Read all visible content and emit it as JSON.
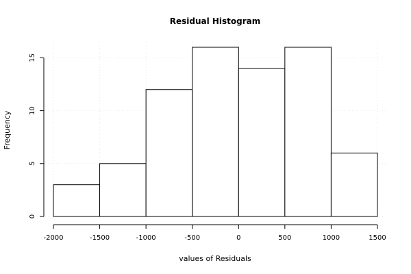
{
  "chart_data": {
    "type": "bar",
    "title": "Residual Histogram",
    "xlabel": "values of Residuals",
    "ylabel": "Frequency",
    "bins": [
      {
        "from": -2000,
        "to": -1500,
        "count": 3
      },
      {
        "from": -1500,
        "to": -1000,
        "count": 5
      },
      {
        "from": -1000,
        "to": -500,
        "count": 12
      },
      {
        "from": -500,
        "to": 0,
        "count": 16
      },
      {
        "from": 0,
        "to": 500,
        "count": 14
      },
      {
        "from": 500,
        "to": 1000,
        "count": 16
      },
      {
        "from": 1000,
        "to": 1500,
        "count": 6
      }
    ],
    "xticks": [
      -2000,
      -1500,
      -1000,
      -500,
      0,
      500,
      1000,
      1500
    ],
    "xtick_labels": [
      "-2000",
      "-1500",
      "-1000",
      "-500",
      "0",
      "500",
      "1000",
      "1500"
    ],
    "yticks": [
      0,
      5,
      10,
      15
    ],
    "ytick_labels": [
      "0",
      "5",
      "10",
      "15"
    ],
    "xlim": [
      -2000,
      1500
    ],
    "ylim": [
      0,
      16
    ],
    "grid": true
  }
}
